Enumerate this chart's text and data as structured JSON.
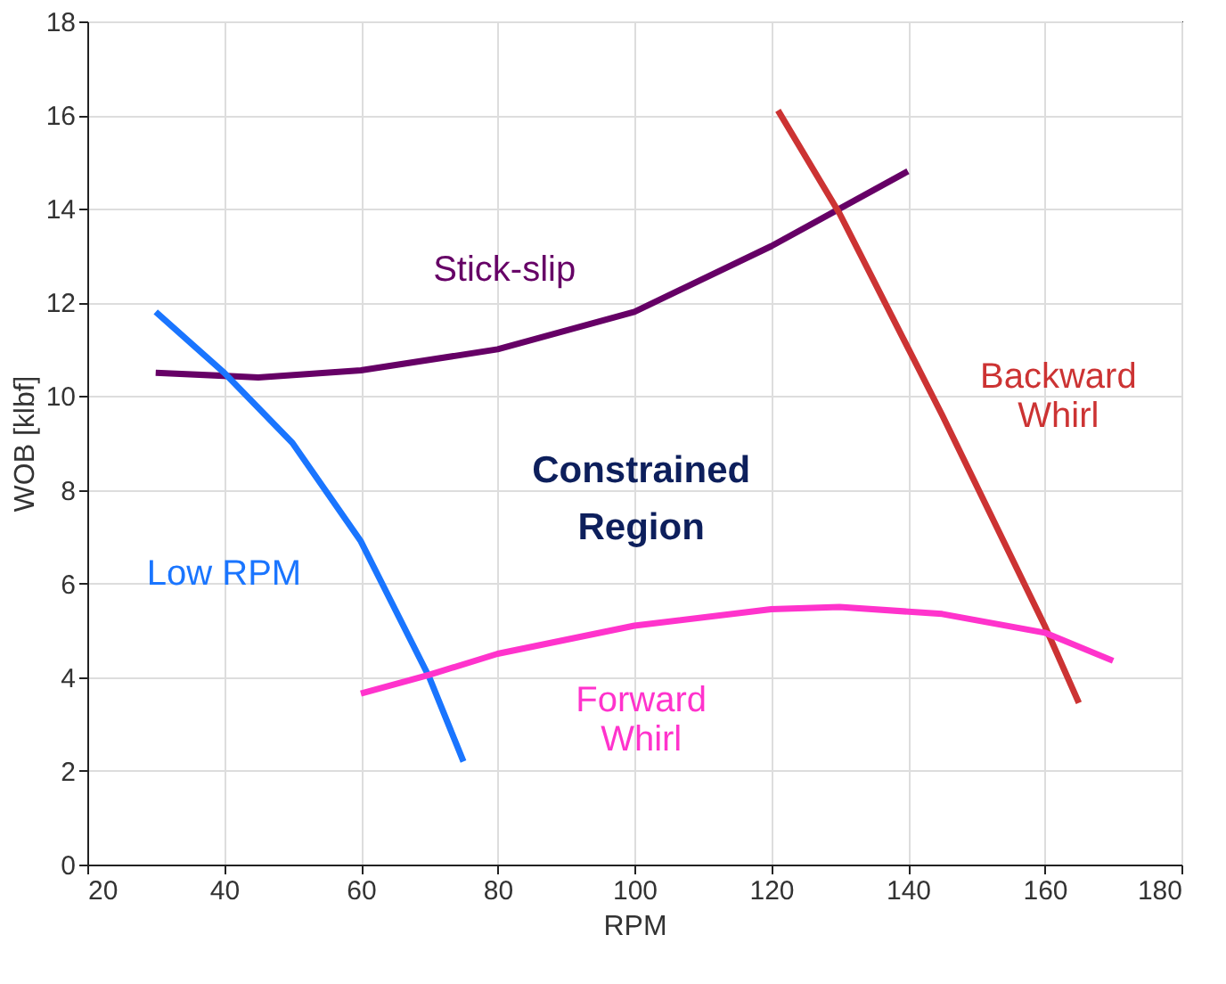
{
  "chart_data": {
    "type": "line",
    "xlabel": "RPM",
    "ylabel": "WOB [klbf]",
    "xlim": [
      20,
      180
    ],
    "xticks": [
      20,
      40,
      60,
      80,
      100,
      120,
      140,
      160,
      180
    ],
    "ylim": [
      0,
      18
    ],
    "yticks": [
      0,
      2,
      4,
      6,
      8,
      10,
      12,
      14,
      16,
      18
    ],
    "grid": true,
    "legend": false,
    "marker": "none",
    "line_style": "solid",
    "series": [
      {
        "name": "Stick-slip",
        "color": "#660066",
        "x": [
          30,
          45,
          60,
          80,
          100,
          120,
          140
        ],
        "values": [
          10.5,
          10.4,
          10.55,
          11.0,
          11.8,
          13.2,
          14.8
        ]
      },
      {
        "name": "Low RPM",
        "color": "#1a75ff",
        "x": [
          30,
          40,
          50,
          60,
          70,
          75
        ],
        "values": [
          11.8,
          10.5,
          9.0,
          6.9,
          4.0,
          2.2
        ]
      },
      {
        "name": "Backward Whirl",
        "color": "#cc3333",
        "x": [
          121,
          130,
          145,
          160,
          165
        ],
        "values": [
          16.1,
          13.9,
          9.6,
          5.1,
          3.45
        ]
      },
      {
        "name": "Forward Whirl",
        "color": "#ff33cc",
        "x": [
          60,
          70,
          80,
          100,
          120,
          130,
          145,
          160,
          170
        ],
        "values": [
          3.65,
          4.05,
          4.5,
          5.1,
          5.45,
          5.5,
          5.35,
          4.95,
          4.35
        ]
      }
    ],
    "annotations": [
      "Constrained Region"
    ]
  }
}
